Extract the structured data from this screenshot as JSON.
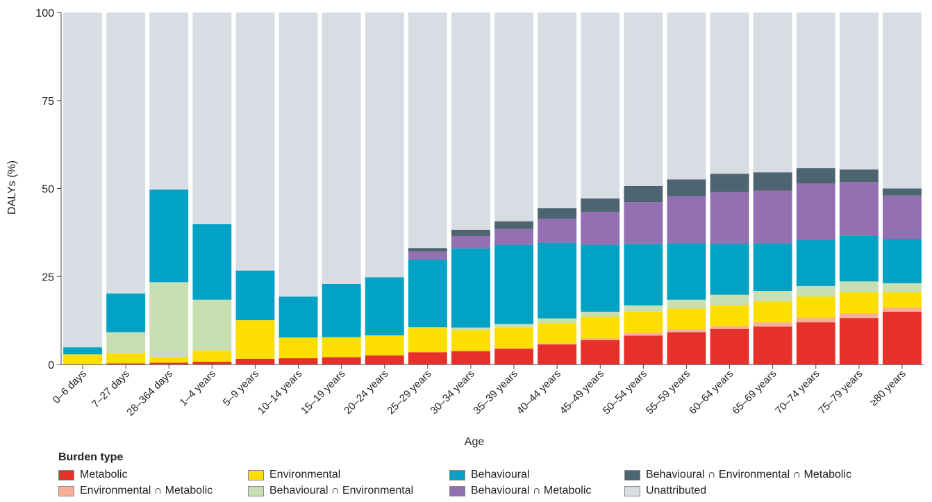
{
  "chart_data": {
    "type": "bar",
    "stacked": true,
    "title": "",
    "xlabel": "Age",
    "ylabel": "DALYs (%)",
    "ylim": [
      0,
      100
    ],
    "yticks": [
      0,
      25,
      50,
      75,
      100
    ],
    "grid": false,
    "legend_title": "Burden type",
    "legend_position": "bottom",
    "categories": [
      "0–6 days",
      "7–27 days",
      "28–364 days",
      "1–4 years",
      "5–9 years",
      "10–14 years",
      "15–19 years",
      "20–24 years",
      "25–29 years",
      "30–34 years",
      "35–39 years",
      "40–44 years",
      "45–49 years",
      "50–54 years",
      "55–59 years",
      "60–64 years",
      "65–69 years",
      "70–74 years",
      "75–79 years",
      "≥80 years"
    ],
    "series": [
      {
        "name": "Metabolic",
        "color": "#e8302a",
        "values": [
          0.1,
          0.3,
          0.5,
          0.8,
          1.6,
          1.8,
          2.1,
          2.6,
          3.5,
          3.8,
          4.5,
          5.7,
          6.9,
          8.2,
          9.2,
          10.1,
          10.8,
          12.0,
          13.2,
          15.0
        ]
      },
      {
        "name": "Environmental ∩ Metabolic",
        "color": "#f5b097",
        "values": [
          0,
          0,
          0,
          0,
          0,
          0,
          0,
          0,
          0,
          0,
          0.1,
          0.3,
          0.5,
          0.8,
          0.8,
          0.8,
          1.2,
          1.3,
          1.3,
          1.2
        ]
      },
      {
        "name": "Environmental",
        "color": "#fcde00",
        "values": [
          2.8,
          2.9,
          1.7,
          3.2,
          11.0,
          5.9,
          5.7,
          5.7,
          6.9,
          6.0,
          5.9,
          5.8,
          6.2,
          6.0,
          5.9,
          6.0,
          5.9,
          6.0,
          6.0,
          4.3
        ]
      },
      {
        "name": "Behavioural ∩ Environmental",
        "color": "#c8dfb2",
        "values": [
          0,
          6.0,
          21.2,
          14.4,
          0,
          0,
          0,
          0,
          0.2,
          0.7,
          1.0,
          1.3,
          1.4,
          1.8,
          2.5,
          2.9,
          3.0,
          3.0,
          3.1,
          2.6
        ]
      },
      {
        "name": "Behavioural",
        "color": "#02a2c5",
        "values": [
          2.0,
          11.0,
          26.3,
          21.5,
          14.1,
          11.6,
          15.1,
          16.5,
          19.2,
          22.5,
          22.5,
          21.5,
          19.0,
          17.4,
          16.0,
          14.5,
          13.5,
          13.0,
          12.9,
          12.5
        ]
      },
      {
        "name": "Behavioural ∩ Metabolic",
        "color": "#9370b2",
        "values": [
          0,
          0,
          0,
          0,
          0,
          0,
          0,
          0,
          2.3,
          3.5,
          4.5,
          6.8,
          9.4,
          11.9,
          13.4,
          14.7,
          15.0,
          16.1,
          15.3,
          12.4
        ]
      },
      {
        "name": "Behavioural ∩ Environmental ∩ Metabolic",
        "color": "#4d6471",
        "values": [
          0,
          0,
          0,
          0,
          0,
          0,
          0,
          0,
          1.0,
          1.8,
          2.2,
          3.0,
          3.8,
          4.6,
          4.8,
          5.2,
          5.2,
          4.4,
          3.6,
          2.0
        ]
      },
      {
        "name": "Unattributed",
        "color": "#d8dde3",
        "values": [
          95.1,
          79.8,
          50.3,
          60.1,
          73.3,
          80.7,
          77.1,
          75.2,
          66.9,
          61.7,
          59.3,
          55.6,
          52.8,
          49.3,
          47.4,
          45.8,
          45.4,
          44.2,
          44.6,
          50.0
        ]
      }
    ]
  },
  "legend_rows": [
    [
      "Metabolic",
      "Environmental",
      "Behavioural",
      "Behavioural ∩ Environmental ∩ Metabolic"
    ],
    [
      "Environmental ∩ Metabolic",
      "Behavioural ∩ Environmental",
      "Behavioural ∩ Metabolic",
      "Unattributed"
    ]
  ]
}
